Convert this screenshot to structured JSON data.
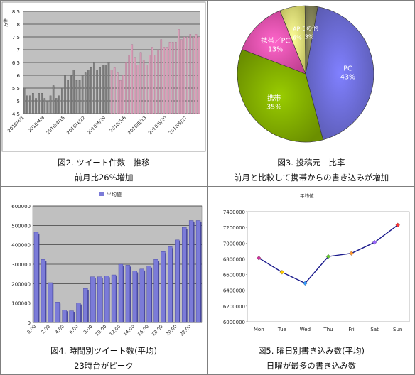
{
  "panels": [
    {
      "caption": "図2. ツイート件数　推移",
      "sub": "前月比26%増加"
    },
    {
      "caption": "図3. 投稿元　比率",
      "sub": "前月と比較して携帯からの書き込みが増加"
    },
    {
      "caption": "図4. 時間別ツイート数(平均)",
      "sub": "23時台がピーク"
    },
    {
      "caption": "図5. 曜日別書き込み数(平均)",
      "sub": "日曜が最多の書き込み数"
    }
  ],
  "chart_data": [
    {
      "type": "bar",
      "ylabel": "万件",
      "ylim": [
        4.5,
        8.5
      ],
      "yticks": [
        4.5,
        5,
        5.5,
        6,
        6.5,
        7,
        7.5,
        8,
        8.5
      ],
      "xticks": [
        "2010/4/1",
        "2010/4/8",
        "2010/4/15",
        "2010/4/22",
        "2010/4/29",
        "2010/5/6",
        "2010/5/13",
        "2010/5/20",
        "2010/5/27"
      ],
      "series": [
        {
          "values": [
            5.5,
            5.2,
            5.2,
            5.3,
            5.1,
            5.3,
            5.3,
            5.1,
            5.0,
            5.2,
            5.6,
            5.1,
            5.2,
            5.5,
            6.0,
            5.8,
            6.0,
            6.2,
            5.8,
            5.8,
            6.0,
            6.1,
            6.2,
            6.3,
            6.5,
            6.2,
            6.3,
            6.4,
            6.4,
            6.5
          ],
          "color": "#808080"
        },
        {
          "values": [
            6.2,
            6.3,
            6.1,
            5.8,
            6.0,
            6.5,
            6.8,
            7.2,
            6.7,
            6.4,
            6.9,
            6.6,
            6.4,
            6.8,
            7.1,
            6.8,
            7.0,
            7.4,
            7.1,
            7.1,
            7.3,
            7.3,
            7.3,
            7.8,
            7.4,
            7.5,
            7.5,
            7.6,
            7.5,
            7.6,
            7.5
          ],
          "color": "#d8a0b8"
        }
      ]
    },
    {
      "type": "pie",
      "categories": [
        "PC",
        "携帯",
        "携帯／PC",
        "API",
        "その他"
      ],
      "values": [
        43,
        35,
        13,
        6,
        3
      ],
      "labels": [
        "43%",
        "35%",
        "13%",
        "6%",
        "3%"
      ],
      "colors": [
        "#8080ff",
        "#99cc00",
        "#ff66cc",
        "#ffff99",
        "#999966"
      ]
    },
    {
      "type": "bar",
      "legend": "平均値",
      "ylim": [
        0,
        600000
      ],
      "yticks": [
        0,
        100000,
        200000,
        300000,
        400000,
        500000,
        600000
      ],
      "categories": [
        "0:00",
        "1:00",
        "2:00",
        "3:00",
        "4:00",
        "5:00",
        "6:00",
        "7:00",
        "8:00",
        "9:00",
        "10:00",
        "11:00",
        "12:00",
        "13:00",
        "14:00",
        "15:00",
        "16:00",
        "17:00",
        "18:00",
        "19:00",
        "20:00",
        "21:00",
        "22:00",
        "23:00"
      ],
      "xticks": [
        "0:00",
        "2:00",
        "4:00",
        "6:00",
        "8:00",
        "10:00",
        "12:00",
        "14:00",
        "16:00",
        "18:00",
        "20:00",
        "22:00"
      ],
      "values": [
        465000,
        325000,
        205000,
        105000,
        65000,
        60000,
        100000,
        175000,
        235000,
        235000,
        240000,
        245000,
        300000,
        295000,
        265000,
        275000,
        290000,
        325000,
        365000,
        390000,
        425000,
        490000,
        525000,
        525000
      ],
      "color": "#7b7bd8"
    },
    {
      "type": "line",
      "legend": "平均値",
      "ylim": [
        6000000,
        7400000
      ],
      "yticks": [
        6000000,
        6200000,
        6400000,
        6600000,
        6800000,
        7000000,
        7200000,
        7400000
      ],
      "categories": [
        "Mon",
        "Tue",
        "Wed",
        "Thu",
        "Fri",
        "Sat",
        "Sun"
      ],
      "values": [
        6810000,
        6630000,
        6490000,
        6830000,
        6870000,
        7010000,
        7230000
      ],
      "marker_colors": [
        "#cc3399",
        "#ffcc00",
        "#3399ff",
        "#66cc33",
        "#ff9933",
        "#9966ff",
        "#ff3333"
      ],
      "color": "#1a1a8c"
    }
  ]
}
